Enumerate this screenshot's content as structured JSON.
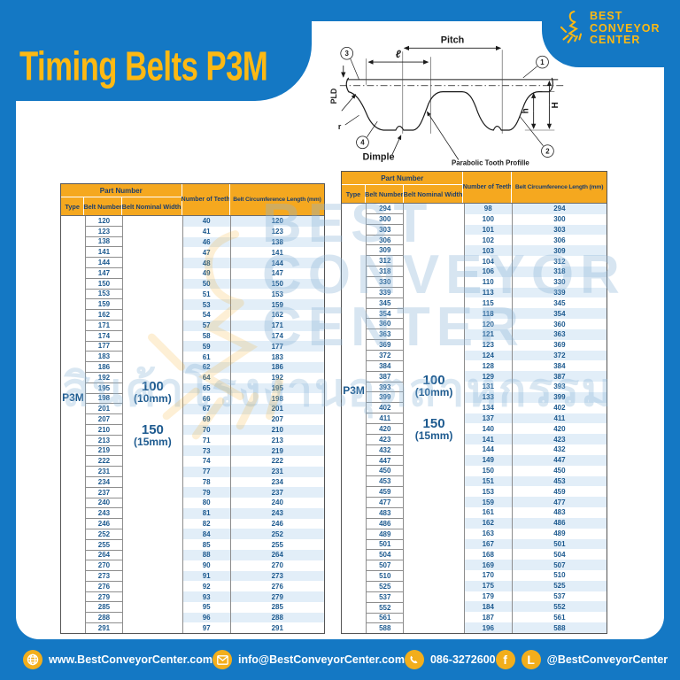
{
  "page": {
    "title": "Timing Belts P3M"
  },
  "logo": {
    "line1": "BEST",
    "line2": "CONVEYOR",
    "line3": "CENTER"
  },
  "diagram": {
    "pitch": "Pitch",
    "tooth_length": "ℓ",
    "pld": "PLD",
    "r": "r",
    "dimple": "Dimple",
    "profile": "Parabolic Tooth Profille",
    "h_small": "h",
    "h_big": "H",
    "callout1": "1",
    "callout2": "2",
    "callout3": "3",
    "callout4": "4"
  },
  "table_headers": {
    "part_number": "Part Number",
    "type": "Type",
    "belt_number": "Belt Number",
    "nominal_width": "Belt Nominal Width",
    "teeth": "Number of Teeth",
    "length": "Belt Circumference Length (mm)"
  },
  "tables": [
    {
      "type": "P3M",
      "width_1_num": "100",
      "width_1_mm": "(10mm)",
      "width_2_num": "150",
      "width_2_mm": "(15mm)",
      "rows": [
        [
          "120",
          "40",
          "120"
        ],
        [
          "123",
          "41",
          "123"
        ],
        [
          "138",
          "46",
          "138"
        ],
        [
          "141",
          "47",
          "141"
        ],
        [
          "144",
          "48",
          "144"
        ],
        [
          "147",
          "49",
          "147"
        ],
        [
          "150",
          "50",
          "150"
        ],
        [
          "153",
          "51",
          "153"
        ],
        [
          "159",
          "53",
          "159"
        ],
        [
          "162",
          "54",
          "162"
        ],
        [
          "171",
          "57",
          "171"
        ],
        [
          "174",
          "58",
          "174"
        ],
        [
          "177",
          "59",
          "177"
        ],
        [
          "183",
          "61",
          "183"
        ],
        [
          "186",
          "62",
          "186"
        ],
        [
          "192",
          "64",
          "192"
        ],
        [
          "195",
          "65",
          "195"
        ],
        [
          "198",
          "66",
          "198"
        ],
        [
          "201",
          "67",
          "201"
        ],
        [
          "207",
          "69",
          "207"
        ],
        [
          "210",
          "70",
          "210"
        ],
        [
          "213",
          "71",
          "213"
        ],
        [
          "219",
          "73",
          "219"
        ],
        [
          "222",
          "74",
          "222"
        ],
        [
          "231",
          "77",
          "231"
        ],
        [
          "234",
          "78",
          "234"
        ],
        [
          "237",
          "79",
          "237"
        ],
        [
          "240",
          "80",
          "240"
        ],
        [
          "243",
          "81",
          "243"
        ],
        [
          "246",
          "82",
          "246"
        ],
        [
          "252",
          "84",
          "252"
        ],
        [
          "255",
          "85",
          "255"
        ],
        [
          "264",
          "88",
          "264"
        ],
        [
          "270",
          "90",
          "270"
        ],
        [
          "273",
          "91",
          "273"
        ],
        [
          "276",
          "92",
          "276"
        ],
        [
          "279",
          "93",
          "279"
        ],
        [
          "285",
          "95",
          "285"
        ],
        [
          "288",
          "96",
          "288"
        ],
        [
          "291",
          "97",
          "291"
        ]
      ]
    },
    {
      "type": "P3M",
      "width_1_num": "100",
      "width_1_mm": "(10mm)",
      "width_2_num": "150",
      "width_2_mm": "(15mm)",
      "rows": [
        [
          "294",
          "98",
          "294"
        ],
        [
          "300",
          "100",
          "300"
        ],
        [
          "303",
          "101",
          "303"
        ],
        [
          "306",
          "102",
          "306"
        ],
        [
          "309",
          "103",
          "309"
        ],
        [
          "312",
          "104",
          "312"
        ],
        [
          "318",
          "106",
          "318"
        ],
        [
          "330",
          "110",
          "330"
        ],
        [
          "339",
          "113",
          "339"
        ],
        [
          "345",
          "115",
          "345"
        ],
        [
          "354",
          "118",
          "354"
        ],
        [
          "360",
          "120",
          "360"
        ],
        [
          "363",
          "121",
          "363"
        ],
        [
          "369",
          "123",
          "369"
        ],
        [
          "372",
          "124",
          "372"
        ],
        [
          "384",
          "128",
          "384"
        ],
        [
          "387",
          "129",
          "387"
        ],
        [
          "393",
          "131",
          "393"
        ],
        [
          "399",
          "133",
          "399"
        ],
        [
          "402",
          "134",
          "402"
        ],
        [
          "411",
          "137",
          "411"
        ],
        [
          "420",
          "140",
          "420"
        ],
        [
          "423",
          "141",
          "423"
        ],
        [
          "432",
          "144",
          "432"
        ],
        [
          "447",
          "149",
          "447"
        ],
        [
          "450",
          "150",
          "450"
        ],
        [
          "453",
          "151",
          "453"
        ],
        [
          "459",
          "153",
          "459"
        ],
        [
          "477",
          "159",
          "477"
        ],
        [
          "483",
          "161",
          "483"
        ],
        [
          "486",
          "162",
          "486"
        ],
        [
          "489",
          "163",
          "489"
        ],
        [
          "501",
          "167",
          "501"
        ],
        [
          "504",
          "168",
          "504"
        ],
        [
          "507",
          "169",
          "507"
        ],
        [
          "510",
          "170",
          "510"
        ],
        [
          "525",
          "175",
          "525"
        ],
        [
          "537",
          "179",
          "537"
        ],
        [
          "552",
          "184",
          "552"
        ],
        [
          "561",
          "187",
          "561"
        ],
        [
          "588",
          "196",
          "588"
        ]
      ]
    }
  ],
  "watermark": {
    "en1": "BEST",
    "en2": "CONVEYOR",
    "en3": "CENTER",
    "th": "สินค้าโรงงานอุตสาหกรรม"
  },
  "footer": {
    "website": "www.BestConveyorCenter.com",
    "email": "info@BestConveyorCenter.com",
    "phone": "086-3272600",
    "social": "@BestConveyorCenter",
    "facebook_letter": "f",
    "line_letter": "L"
  },
  "colors": {
    "page_blue": "#1478C4",
    "accent_yellow": "#FDB913",
    "header_orange": "#F5A81F",
    "text_navy": "#1D5A8F",
    "stripe_blue": "#E2EEF8"
  }
}
